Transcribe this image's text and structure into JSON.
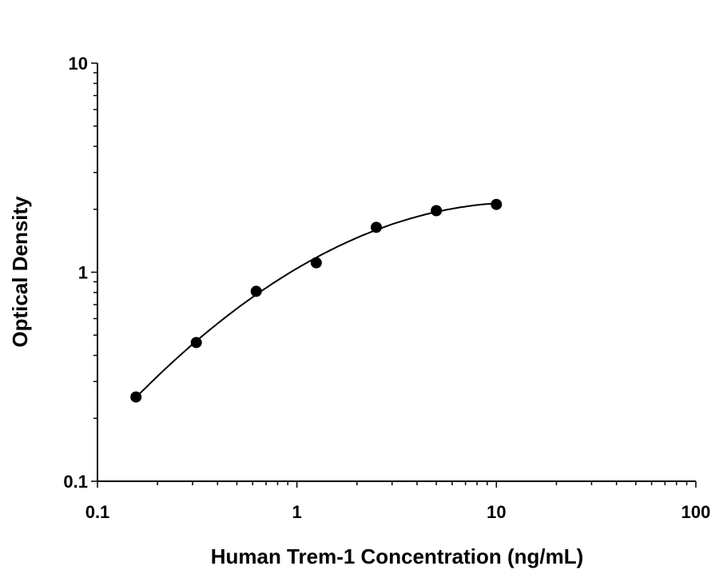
{
  "chart_data": {
    "type": "scatter",
    "title": "",
    "xlabel": "Human Trem-1 Concentration (ng/mL)",
    "ylabel": "Optical Density",
    "x_scale": "log",
    "y_scale": "log",
    "xlim": [
      0.1,
      100
    ],
    "ylim": [
      0.1,
      10
    ],
    "x_ticks": [
      "0.1",
      "1",
      "10",
      "100"
    ],
    "y_ticks": [
      "0.1",
      "1",
      "10"
    ],
    "grid": false,
    "legend": "none",
    "fit_curve": true,
    "colors": {
      "points": "#000000",
      "curve": "#000000"
    },
    "series": [
      {
        "x": [
          0.156,
          0.313,
          0.625,
          1.25,
          2.5,
          5,
          10
        ],
        "y": [
          0.253,
          0.461,
          0.81,
          1.11,
          1.64,
          1.97,
          2.11
        ]
      }
    ]
  }
}
